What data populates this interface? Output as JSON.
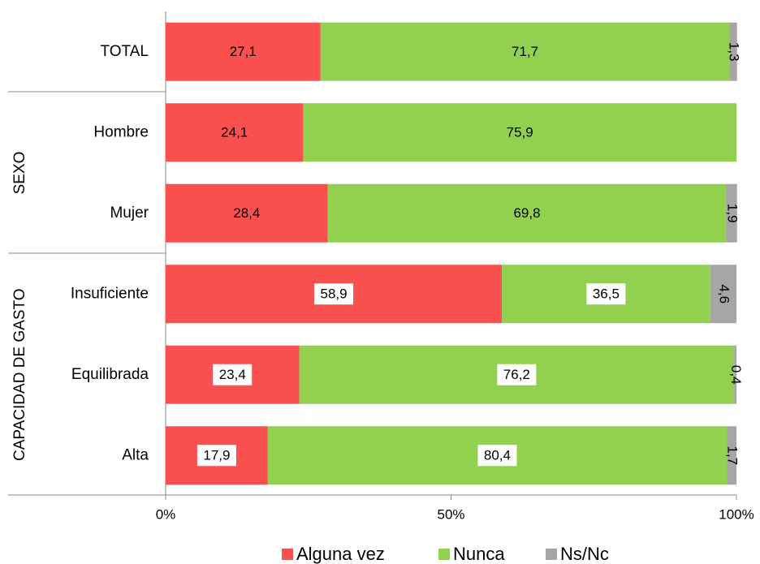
{
  "chart_data": {
    "type": "stacked_bar_horizontal",
    "categories": [
      "TOTAL",
      "Hombre",
      "Mujer",
      "Insuficiente",
      "Equilibrada",
      "Alta"
    ],
    "groups": [
      null,
      "SEXO",
      "SEXO",
      "CAPACIDAD DE GASTO",
      "CAPACIDAD DE GASTO",
      "CAPACIDAD DE GASTO"
    ],
    "series": [
      {
        "name": "Alguna vez",
        "color": "#fa5050",
        "values": [
          27.1,
          24.1,
          28.4,
          58.9,
          23.4,
          17.9
        ],
        "value_labels": [
          "27,1",
          "24,1",
          "28,4",
          "58,9",
          "23,4",
          "17,9"
        ]
      },
      {
        "name": "Nunca",
        "color": "#92d050",
        "values": [
          71.7,
          75.9,
          69.8,
          36.5,
          76.2,
          80.4
        ],
        "value_labels": [
          "71,7",
          "75,9",
          "69,8",
          "36,5",
          "76,2",
          "80,4"
        ]
      },
      {
        "name": "Ns/Nc",
        "color": "#a6a6a6",
        "values": [
          1.3,
          null,
          1.9,
          4.6,
          0.4,
          1.7
        ],
        "value_labels": [
          "1,3",
          null,
          "1,9",
          "4,6",
          "0,4",
          "1,7"
        ]
      }
    ],
    "xlim": [
      0,
      100
    ],
    "xticks": [
      {
        "value": 0,
        "label": "0%"
      },
      {
        "value": 50,
        "label": "50%"
      },
      {
        "value": 100,
        "label": "100%"
      }
    ],
    "grid": false,
    "legend": "bottom"
  }
}
